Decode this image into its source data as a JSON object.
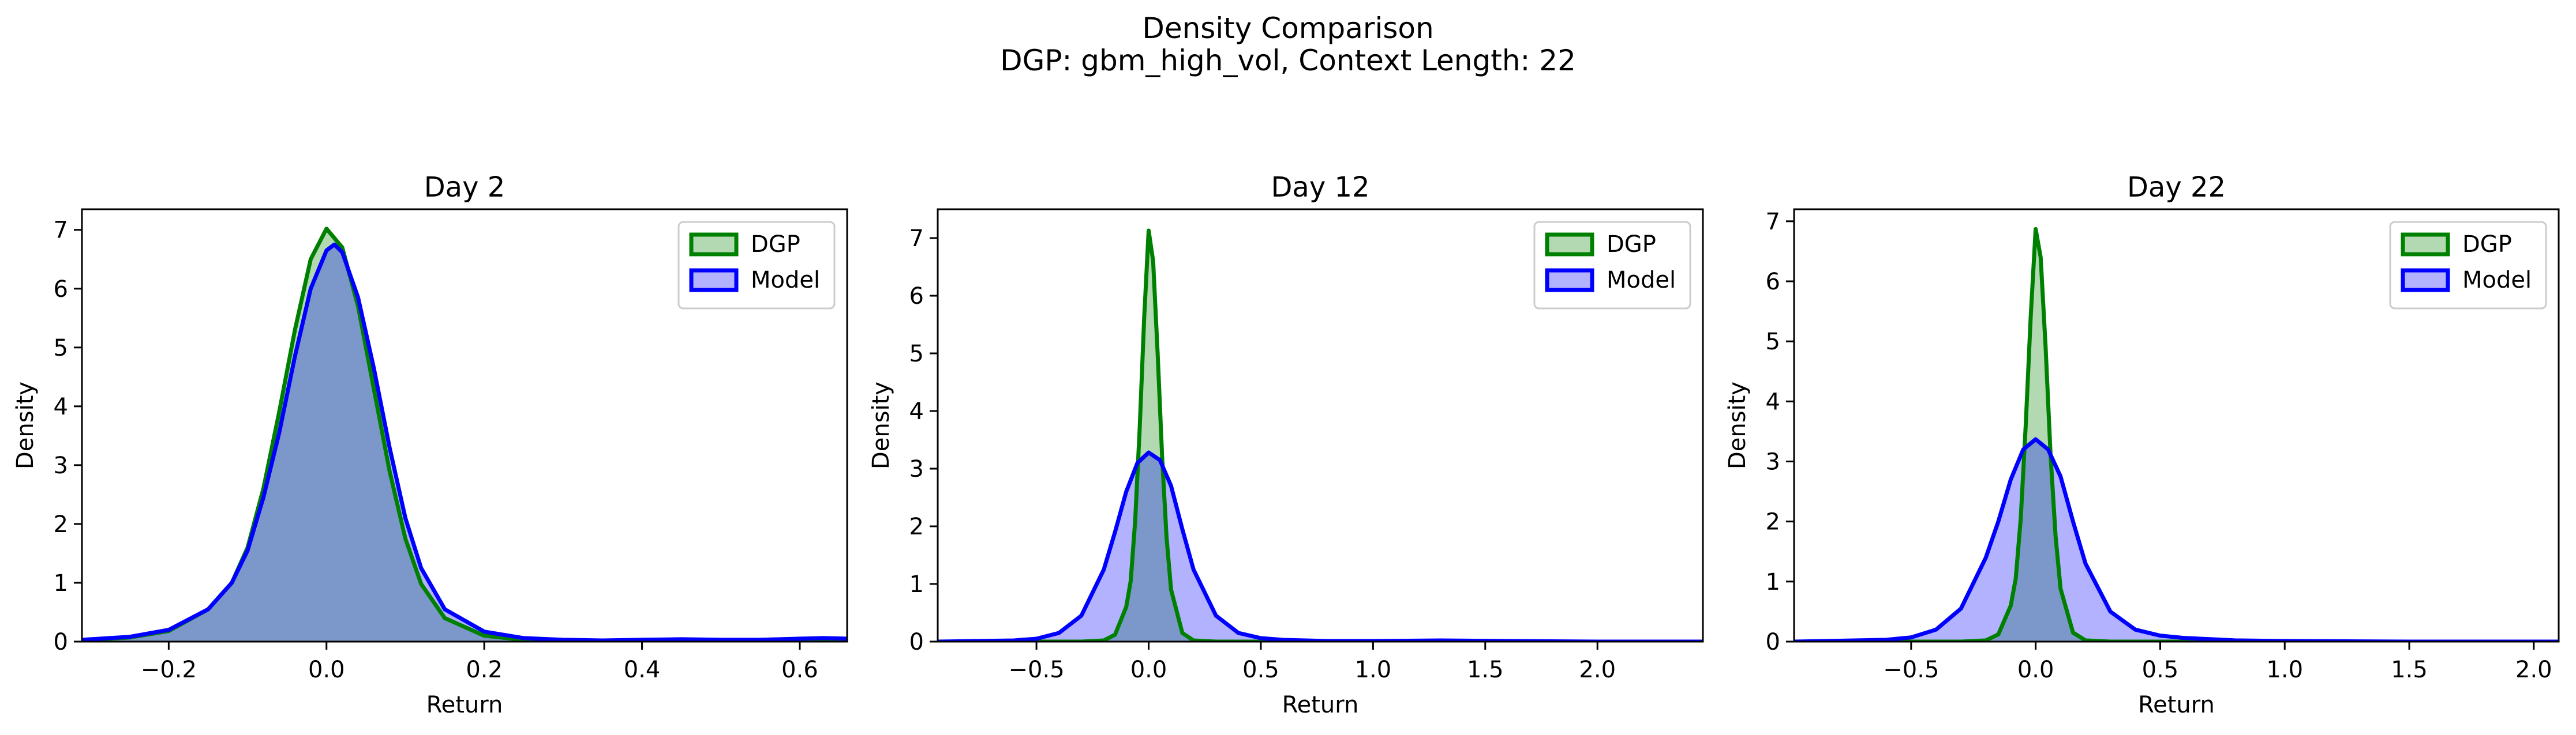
{
  "figure": {
    "title_line1": "Density Comparison",
    "title_line2": "DGP: gbm_high_vol, Context Length: 22"
  },
  "colors": {
    "dgp_line": "#008000",
    "dgp_fill": "#008000",
    "model_line": "#0000ff",
    "model_fill": "#0000ff"
  },
  "chart_data": [
    {
      "type": "area",
      "title": "Day 2",
      "xlabel": "Return",
      "ylabel": "Density",
      "xlim": [
        -0.31,
        0.66
      ],
      "ylim": [
        0,
        7.35
      ],
      "xticks": [
        -0.2,
        0.0,
        0.2,
        0.4,
        0.6
      ],
      "xtick_labels": [
        "−0.2",
        "0.0",
        "0.2",
        "0.4",
        "0.6"
      ],
      "yticks": [
        0,
        1,
        2,
        3,
        4,
        5,
        6,
        7
      ],
      "ytick_labels": [
        "0",
        "1",
        "2",
        "3",
        "4",
        "5",
        "6",
        "7"
      ],
      "legend": {
        "position": "top-right",
        "entries": [
          "DGP",
          "Model"
        ]
      },
      "grid": false,
      "series": [
        {
          "name": "DGP",
          "x": [
            -0.31,
            -0.25,
            -0.2,
            -0.15,
            -0.12,
            -0.1,
            -0.08,
            -0.06,
            -0.04,
            -0.02,
            0.0,
            0.02,
            0.04,
            0.06,
            0.08,
            0.1,
            0.12,
            0.15,
            0.2,
            0.25,
            0.3,
            0.4,
            0.5,
            0.6,
            0.66
          ],
          "y": [
            0.02,
            0.07,
            0.18,
            0.55,
            1.0,
            1.6,
            2.6,
            3.9,
            5.3,
            6.5,
            7.02,
            6.7,
            5.7,
            4.3,
            2.9,
            1.75,
            0.98,
            0.4,
            0.1,
            0.03,
            0.01,
            0.0,
            0.0,
            0.0,
            0.0
          ]
        },
        {
          "name": "Model",
          "x": [
            -0.31,
            -0.25,
            -0.2,
            -0.15,
            -0.12,
            -0.1,
            -0.08,
            -0.06,
            -0.04,
            -0.02,
            0.0,
            0.01,
            0.02,
            0.04,
            0.06,
            0.08,
            0.1,
            0.12,
            0.15,
            0.2,
            0.25,
            0.3,
            0.35,
            0.4,
            0.45,
            0.5,
            0.55,
            0.6,
            0.63,
            0.66
          ],
          "y": [
            0.03,
            0.08,
            0.2,
            0.55,
            1.0,
            1.55,
            2.45,
            3.55,
            4.85,
            6.0,
            6.65,
            6.75,
            6.62,
            5.85,
            4.65,
            3.3,
            2.1,
            1.25,
            0.55,
            0.17,
            0.06,
            0.03,
            0.02,
            0.03,
            0.04,
            0.03,
            0.03,
            0.05,
            0.06,
            0.05
          ]
        }
      ]
    },
    {
      "type": "area",
      "title": "Day 12",
      "xlabel": "Return",
      "ylabel": "Density",
      "xlim": [
        -0.94,
        2.47
      ],
      "ylim": [
        0,
        7.5
      ],
      "xticks": [
        -0.5,
        0.0,
        0.5,
        1.0,
        1.5,
        2.0
      ],
      "xtick_labels": [
        "−0.5",
        "0.0",
        "0.5",
        "1.0",
        "1.5",
        "2.0"
      ],
      "yticks": [
        0,
        1,
        2,
        3,
        4,
        5,
        6,
        7
      ],
      "ytick_labels": [
        "0",
        "1",
        "2",
        "3",
        "4",
        "5",
        "6",
        "7"
      ],
      "legend": {
        "position": "top-right",
        "entries": [
          "DGP",
          "Model"
        ]
      },
      "grid": false,
      "series": [
        {
          "name": "DGP",
          "x": [
            -0.94,
            -0.3,
            -0.2,
            -0.15,
            -0.1,
            -0.08,
            -0.06,
            -0.04,
            -0.02,
            0.0,
            0.02,
            0.04,
            0.06,
            0.08,
            0.1,
            0.15,
            0.2,
            0.3,
            0.5,
            1.0,
            2.0,
            2.47
          ],
          "y": [
            0.0,
            0.0,
            0.02,
            0.12,
            0.6,
            1.05,
            2.1,
            3.7,
            5.6,
            7.13,
            6.6,
            5.0,
            3.2,
            1.8,
            0.9,
            0.15,
            0.02,
            0.0,
            0.0,
            0.0,
            0.0,
            0.0
          ]
        },
        {
          "name": "Model",
          "x": [
            -0.94,
            -0.6,
            -0.5,
            -0.4,
            -0.3,
            -0.2,
            -0.15,
            -0.1,
            -0.05,
            0.0,
            0.05,
            0.1,
            0.15,
            0.2,
            0.3,
            0.4,
            0.5,
            0.6,
            0.8,
            1.0,
            1.3,
            1.6,
            2.0,
            2.47
          ],
          "y": [
            0.0,
            0.02,
            0.05,
            0.15,
            0.45,
            1.25,
            1.9,
            2.6,
            3.1,
            3.28,
            3.15,
            2.7,
            1.95,
            1.25,
            0.45,
            0.15,
            0.06,
            0.03,
            0.01,
            0.01,
            0.02,
            0.01,
            0.0,
            0.0
          ]
        }
      ]
    },
    {
      "type": "area",
      "title": "Day 22",
      "xlabel": "Return",
      "ylabel": "Density",
      "xlim": [
        -0.97,
        2.1
      ],
      "ylim": [
        0,
        7.2
      ],
      "xticks": [
        -0.5,
        0.0,
        0.5,
        1.0,
        1.5,
        2.0
      ],
      "xtick_labels": [
        "−0.5",
        "0.0",
        "0.5",
        "1.0",
        "1.5",
        "2.0"
      ],
      "yticks": [
        0,
        1,
        2,
        3,
        4,
        5,
        6,
        7
      ],
      "ytick_labels": [
        "0",
        "1",
        "2",
        "3",
        "4",
        "5",
        "6",
        "7"
      ],
      "legend": {
        "position": "top-right",
        "entries": [
          "DGP",
          "Model"
        ]
      },
      "grid": false,
      "series": [
        {
          "name": "DGP",
          "x": [
            -0.97,
            -0.3,
            -0.2,
            -0.15,
            -0.1,
            -0.08,
            -0.06,
            -0.04,
            -0.02,
            0.0,
            0.02,
            0.04,
            0.06,
            0.08,
            0.1,
            0.15,
            0.2,
            0.3,
            0.5,
            1.0,
            2.1
          ],
          "y": [
            0.0,
            0.0,
            0.02,
            0.12,
            0.6,
            1.05,
            2.05,
            3.6,
            5.4,
            6.87,
            6.4,
            4.9,
            3.1,
            1.75,
            0.88,
            0.15,
            0.02,
            0.0,
            0.0,
            0.0,
            0.0
          ]
        },
        {
          "name": "Model",
          "x": [
            -0.97,
            -0.6,
            -0.5,
            -0.4,
            -0.3,
            -0.2,
            -0.15,
            -0.1,
            -0.05,
            0.0,
            0.05,
            0.1,
            0.15,
            0.2,
            0.3,
            0.4,
            0.5,
            0.6,
            0.7,
            0.8,
            1.0,
            1.5,
            2.1
          ],
          "y": [
            0.0,
            0.03,
            0.07,
            0.2,
            0.55,
            1.4,
            2.0,
            2.7,
            3.2,
            3.37,
            3.2,
            2.75,
            2.0,
            1.3,
            0.5,
            0.2,
            0.1,
            0.06,
            0.04,
            0.02,
            0.01,
            0.0,
            0.0
          ]
        }
      ]
    }
  ]
}
